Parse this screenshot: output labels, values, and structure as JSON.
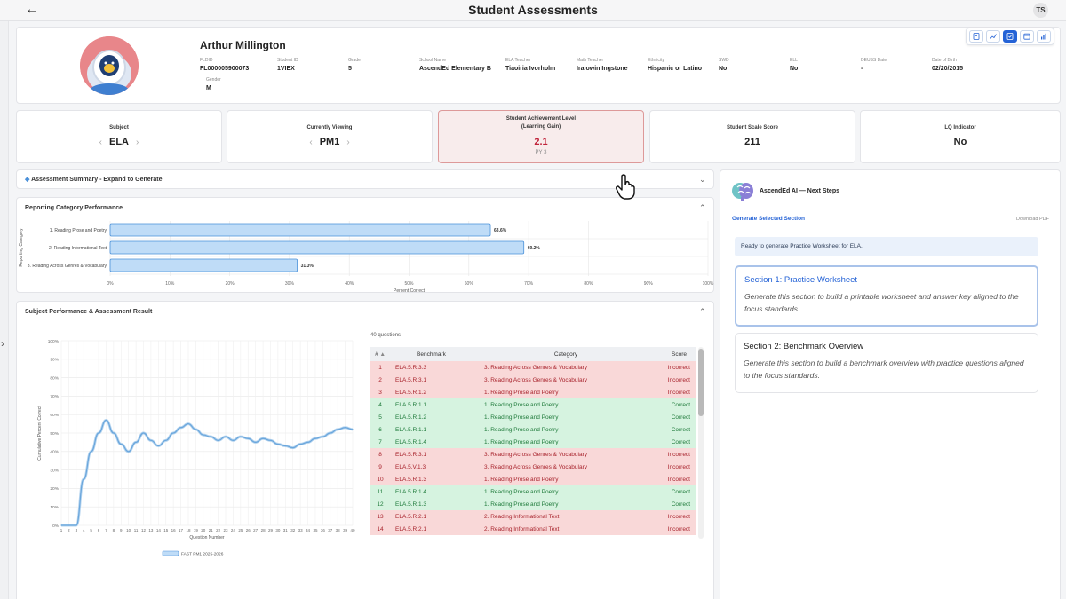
{
  "header": {
    "title": "Student Assessments",
    "user_initials": "TS"
  },
  "student": {
    "name": "Arthur Millington",
    "fields": [
      {
        "label": "FLDID",
        "value": "FL000005900073"
      },
      {
        "label": "Student ID",
        "value": "1VIEX"
      },
      {
        "label": "Grade",
        "value": "5"
      },
      {
        "label": "School Name",
        "value": "AscendEd Elementary B"
      },
      {
        "label": "ELA Teacher",
        "value": "Tiaoiria Ivorholm"
      },
      {
        "label": "Math Teacher",
        "value": "Iraiowin Ingstone"
      },
      {
        "label": "Ethnicity",
        "value": "Hispanic or Latino"
      },
      {
        "label": "SWD",
        "value": "No"
      },
      {
        "label": "ELL",
        "value": "No"
      },
      {
        "label": "DEUSS Date",
        "value": "-"
      },
      {
        "label": "Date of Birth",
        "value": "02/20/2015"
      },
      {
        "label": "Gender",
        "value": "M"
      }
    ]
  },
  "stats": {
    "subject": {
      "label": "Subject",
      "value": "ELA"
    },
    "viewing": {
      "label": "Currently Viewing",
      "value": "PM1"
    },
    "achievement": {
      "label_line1": "Student Achievement Level",
      "label_line2": "(Learning Gain)",
      "value": "2.1",
      "sub": "PY 3"
    },
    "scale": {
      "label": "Student Scale Score",
      "value": "211"
    },
    "lq": {
      "label": "LQ Indicator",
      "value": "No"
    }
  },
  "summary": {
    "title": "Assessment Summary - Expand to Generate"
  },
  "reporting": {
    "title": "Reporting Category Performance",
    "chart_data": {
      "type": "bar",
      "orientation": "horizontal",
      "categories": [
        "1. Reading Prose and Poetry",
        "2. Reading Informational Text",
        "3. Reading Across Genres & Vocabulary"
      ],
      "values": [
        63.6,
        69.2,
        31.3
      ],
      "value_labels": [
        "63.6%",
        "69.2%",
        "31.3%"
      ],
      "xlabel": "Percent Correct",
      "ylabel": "Reporting Category",
      "xlim": [
        0,
        100
      ],
      "x_ticks": [
        "0%",
        "10%",
        "20%",
        "30%",
        "40%",
        "50%",
        "60%",
        "70%",
        "80%",
        "90%",
        "100%"
      ]
    }
  },
  "subject_perf": {
    "title": "Subject Performance & Assessment Result",
    "chart_data": {
      "type": "line",
      "xlabel": "Question Number",
      "ylabel": "Cumulative Percent Correct",
      "ylim": [
        0,
        100
      ],
      "y_ticks": [
        "0%",
        "10%",
        "20%",
        "30%",
        "40%",
        "50%",
        "60%",
        "70%",
        "80%",
        "90%",
        "100%"
      ],
      "x": [
        1,
        2,
        3,
        4,
        5,
        6,
        7,
        8,
        9,
        10,
        11,
        12,
        13,
        14,
        15,
        16,
        17,
        18,
        19,
        20,
        21,
        22,
        23,
        24,
        25,
        26,
        27,
        28,
        29,
        30,
        31,
        32,
        33,
        34,
        35,
        36,
        37,
        38,
        39,
        40
      ],
      "series": [
        {
          "name": "FAST PM1 2025-2026",
          "values": [
            0,
            0,
            0,
            25,
            40,
            50,
            57,
            50,
            44,
            40,
            45,
            50,
            46,
            43,
            46,
            50,
            53,
            55,
            52,
            49,
            48,
            46,
            48,
            46,
            48,
            47,
            45,
            47,
            46,
            44,
            43,
            42,
            44,
            45,
            47,
            48,
            50,
            52,
            53,
            52
          ]
        }
      ]
    },
    "questions_count": "40 questions",
    "table": {
      "headers": {
        "num": "#",
        "benchmark": "Benchmark",
        "category": "Category",
        "score": "Score"
      },
      "rows": [
        {
          "num": "1",
          "benchmark": "ELA.5.R.3.3",
          "category": "3. Reading Across Genres & Vocabulary",
          "score": "Incorrect"
        },
        {
          "num": "2",
          "benchmark": "ELA.5.R.3.1",
          "category": "3. Reading Across Genres & Vocabulary",
          "score": "Incorrect"
        },
        {
          "num": "3",
          "benchmark": "ELA.5.R.1.2",
          "category": "1. Reading Prose and Poetry",
          "score": "Incorrect"
        },
        {
          "num": "4",
          "benchmark": "ELA.5.R.1.1",
          "category": "1. Reading Prose and Poetry",
          "score": "Correct"
        },
        {
          "num": "5",
          "benchmark": "ELA.5.R.1.2",
          "category": "1. Reading Prose and Poetry",
          "score": "Correct"
        },
        {
          "num": "6",
          "benchmark": "ELA.5.R.1.1",
          "category": "1. Reading Prose and Poetry",
          "score": "Correct"
        },
        {
          "num": "7",
          "benchmark": "ELA.5.R.1.4",
          "category": "1. Reading Prose and Poetry",
          "score": "Correct"
        },
        {
          "num": "8",
          "benchmark": "ELA.5.R.3.1",
          "category": "3. Reading Across Genres & Vocabulary",
          "score": "Incorrect"
        },
        {
          "num": "9",
          "benchmark": "ELA.5.V.1.3",
          "category": "3. Reading Across Genres & Vocabulary",
          "score": "Incorrect"
        },
        {
          "num": "10",
          "benchmark": "ELA.5.R.1.3",
          "category": "1. Reading Prose and Poetry",
          "score": "Incorrect"
        },
        {
          "num": "11",
          "benchmark": "ELA.5.R.1.4",
          "category": "1. Reading Prose and Poetry",
          "score": "Correct"
        },
        {
          "num": "12",
          "benchmark": "ELA.5.R.1.3",
          "category": "1. Reading Prose and Poetry",
          "score": "Correct"
        },
        {
          "num": "13",
          "benchmark": "ELA.5.R.2.1",
          "category": "2. Reading Informational Text",
          "score": "Incorrect"
        },
        {
          "num": "14",
          "benchmark": "ELA.5.R.2.1",
          "category": "2. Reading Informational Text",
          "score": "Incorrect"
        }
      ]
    }
  },
  "ai": {
    "title": "AscendEd AI — Next Steps",
    "generate": "Generate Selected Section",
    "download": "Download PDF",
    "ready": "Ready to generate Practice Worksheet for ELA.",
    "sections": [
      {
        "title": "Section 1: Practice Worksheet",
        "desc": "Generate this section to build a printable worksheet and answer key aligned to the focus standards."
      },
      {
        "title": "Section 2: Benchmark Overview",
        "desc": "Generate this section to build a benchmark overview with practice questions aligned to the focus standards."
      }
    ]
  },
  "colors": {
    "accent": "#2563d6",
    "bar_fill": "#bfdcf7",
    "bar_stroke": "#4a90d9",
    "incorrect_bg": "#f9d8d8",
    "correct_bg": "#d6f3e0"
  }
}
